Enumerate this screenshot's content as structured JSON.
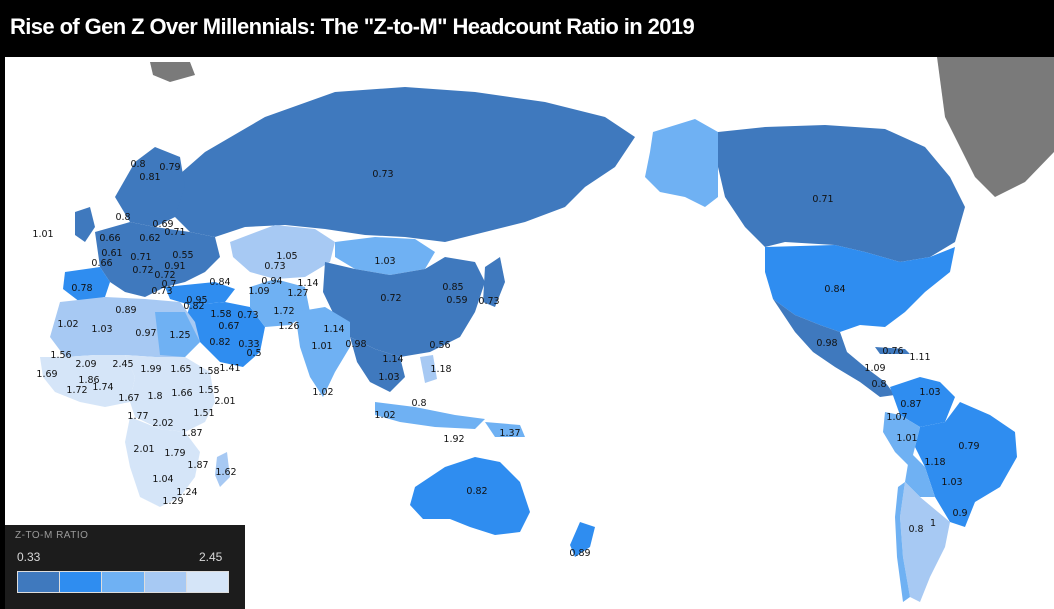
{
  "title": "Rise of Gen Z Over Millennials: The \"Z-to-M\" Headcount Ratio in 2019",
  "colors": {
    "bin1": "#3f79be",
    "bin2": "#2f8df0",
    "bin3": "#6fb1f3",
    "bin4": "#a7c9f3",
    "bin5": "#d5e5f8",
    "no_data": "#7a7a7a",
    "ocean": "#ffffff"
  },
  "legend": {
    "title": "Z-TO-M RATIO",
    "min": "0.33",
    "max": "2.45",
    "bins": [
      "#3f79be",
      "#2f8df0",
      "#6fb1f3",
      "#a7c9f3",
      "#d5e5f8"
    ]
  },
  "map_labels": [
    "0.73",
    "0.71",
    "0.84",
    "0.98",
    "0.76",
    "1.11",
    "1.09",
    "0.8",
    "1.03",
    "0.87",
    "1.07",
    "1.01",
    "0.79",
    "1.18",
    "1.03",
    "0.9",
    "0.8",
    "1",
    "0.8",
    "0.79",
    "0.81",
    "0.8",
    "0.69",
    "0.71",
    "1.01",
    "0.62",
    "0.66",
    "0.55",
    "0.91",
    "0.66",
    "0.71",
    "0.72",
    "0.61",
    "0.72",
    "0.7",
    "0.73",
    "0.78",
    "0.89",
    "0.95",
    "0.82",
    "0.84",
    "1.05",
    "0.73",
    "0.94",
    "1.14",
    "1.09",
    "1.27",
    "1.03",
    "0.72",
    "0.85",
    "0.59",
    "0.73",
    "1.02",
    "1.03",
    "0.97",
    "1.25",
    "1.58",
    "0.73",
    "0.67",
    "1.72",
    "1.26",
    "1.14",
    "1.01",
    "0.98",
    "0.82",
    "0.33",
    "0.5",
    "1.41",
    "0.56",
    "1.14",
    "1.03",
    "1.18",
    "1.02",
    "0.8",
    "1.37",
    "1.92",
    "1.02",
    "0.82",
    "0.89",
    "1.56",
    "2.09",
    "2.45",
    "1.99",
    "1.65",
    "1.58",
    "1.69",
    "1.86",
    "1.74",
    "1.72",
    "1.66",
    "1.55",
    "1.8",
    "1.67",
    "2.01",
    "1.51",
    "1.77",
    "2.02",
    "1.87",
    "2.01",
    "1.79",
    "1.87",
    "1.04",
    "1.24",
    "1.29",
    "1.62"
  ]
}
